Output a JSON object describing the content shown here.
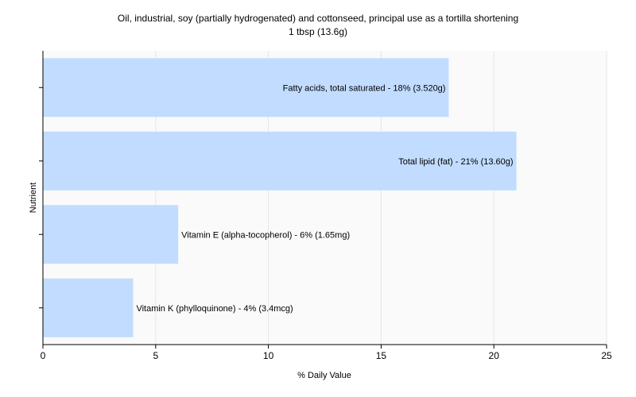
{
  "chart_data": {
    "type": "bar",
    "orientation": "horizontal",
    "title": "Oil, industrial, soy (partially hydrogenated)  and cottonseed, principal use as a tortilla shortening",
    "subtitle": "1 tbsp (13.6g)",
    "xlabel": "% Daily Value",
    "ylabel": "Nutrient",
    "xlim": [
      0,
      25
    ],
    "xticks": [
      0,
      5,
      10,
      15,
      20,
      25
    ],
    "grid": "vertical",
    "categories": [
      "Fatty acids, total saturated",
      "Total lipid (fat)",
      "Vitamin E (alpha-tocopherol)",
      "Vitamin K (phylloquinone)"
    ],
    "values": [
      18,
      21,
      6,
      4
    ],
    "labels": [
      "Fatty acids, total saturated - 18% (3.520g)",
      "Total lipid (fat) - 21% (13.60g)",
      "Vitamin E (alpha-tocopherol) - 6% (1.65mg)",
      "Vitamin K (phylloquinone) - 4% (3.4mcg)"
    ],
    "bar_color": "#c2dcff",
    "plot_background": "#fafafa",
    "grid_color": "#e6e6e6"
  }
}
